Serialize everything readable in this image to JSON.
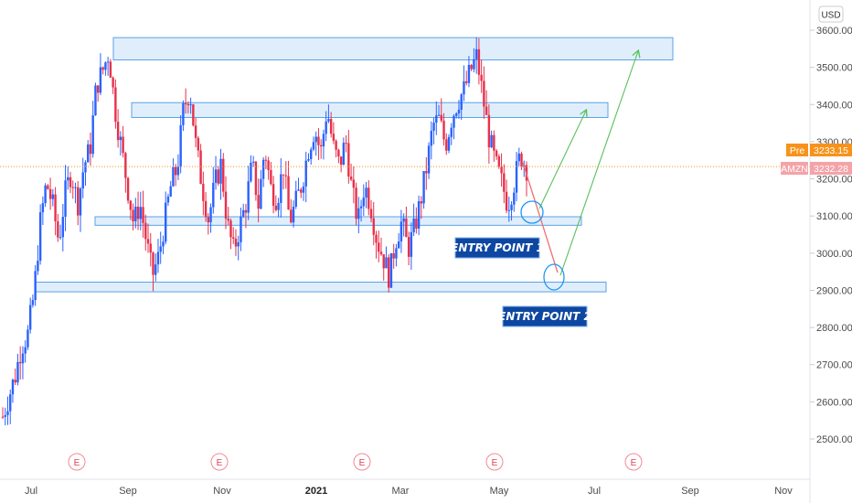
{
  "chart_data": {
    "type": "candlestick",
    "currency": "USD",
    "y_ticks": [
      "3600.00",
      "3500.00",
      "3400.00",
      "3300.00",
      "3200.00",
      "3100.00",
      "3000.00",
      "2900.00",
      "2800.00",
      "2700.00",
      "2600.00",
      "2500.00"
    ],
    "x_labels": [
      {
        "label": "Jul",
        "year": false
      },
      {
        "label": "Sep",
        "year": false
      },
      {
        "label": "Nov",
        "year": false
      },
      {
        "label": "2021",
        "year": true
      },
      {
        "label": "Mar",
        "year": false
      },
      {
        "label": "May",
        "year": false
      },
      {
        "label": "Jul",
        "year": false
      },
      {
        "label": "Sep",
        "year": false
      },
      {
        "label": "Nov",
        "year": false
      }
    ],
    "ylim": [
      2410,
      3640
    ],
    "colors": {
      "up": "#2962ff",
      "down": "#e8304a",
      "zone_fill": "#d6e8fb",
      "zone_stroke": "#5aa3e6",
      "arrow_up": "#59c05a",
      "arrow_down": "#f07070",
      "entry_bg": "#0d47a1",
      "pre_tag": "#f7931a",
      "amzn_tag": "#f4a3a8",
      "price_line": "#f7931a"
    },
    "zones": [
      {
        "top": 3580,
        "bottom": 3520
      },
      {
        "top": 3405,
        "bottom": 3365
      },
      {
        "top": 3098,
        "bottom": 3075
      },
      {
        "top": 2922,
        "bottom": 2896
      }
    ],
    "earnings_marker": "E",
    "entry_points": [
      "ENTRY POINT 1",
      "ENTRY POINT 2"
    ],
    "price_tags": [
      {
        "label": "Pre",
        "value": "3233.15"
      },
      {
        "label": "AMZN",
        "value": "3232.28"
      }
    ],
    "current_price": 3233.15,
    "candle_seed_points": [
      [
        2600,
        2520
      ],
      [
        2620,
        2610
      ],
      [
        2700,
        2640
      ],
      [
        2780,
        2720
      ],
      [
        2800,
        2760
      ],
      [
        2900,
        2880
      ],
      [
        3100,
        3060
      ],
      [
        3200,
        3180
      ],
      [
        3150,
        3110
      ],
      [
        3050,
        3010
      ],
      [
        3180,
        3140
      ],
      [
        3240,
        3200
      ],
      [
        3150,
        3110
      ],
      [
        3250,
        3220
      ],
      [
        3300,
        3260
      ],
      [
        3460,
        3440
      ],
      [
        3500,
        3480
      ],
      [
        3550,
        3530
      ],
      [
        3400,
        3380
      ],
      [
        3300,
        3270
      ],
      [
        3200,
        3160
      ],
      [
        3100,
        3060
      ],
      [
        3150,
        3120
      ],
      [
        3050,
        3020
      ],
      [
        2950,
        2930
      ],
      [
        3000,
        2980
      ],
      [
        3100,
        3080
      ],
      [
        3200,
        3170
      ],
      [
        3250,
        3210
      ],
      [
        3400,
        3380
      ],
      [
        3450,
        3430
      ],
      [
        3300,
        3270
      ],
      [
        3200,
        3160
      ],
      [
        3100,
        3080
      ],
      [
        3200,
        3170
      ],
      [
        3250,
        3230
      ],
      [
        3100,
        3060
      ],
      [
        3010,
        3000
      ],
      [
        3080,
        3060
      ],
      [
        3150,
        3120
      ],
      [
        3250,
        3230
      ],
      [
        3150,
        3110
      ],
      [
        3300,
        3270
      ],
      [
        3200,
        3150
      ],
      [
        3160,
        3130
      ],
      [
        3250,
        3220
      ],
      [
        3100,
        3070
      ],
      [
        3150,
        3120
      ],
      [
        3200,
        3180
      ],
      [
        3300,
        3260
      ],
      [
        3350,
        3320
      ],
      [
        3280,
        3260
      ],
      [
        3400,
        3380
      ],
      [
        3300,
        3270
      ],
      [
        3250,
        3220
      ],
      [
        3320,
        3290
      ],
      [
        3180,
        3150
      ],
      [
        3100,
        3070
      ],
      [
        3200,
        3170
      ],
      [
        3150,
        3110
      ],
      [
        3050,
        3020
      ],
      [
        3000,
        2980
      ],
      [
        2940,
        2930
      ],
      [
        3050,
        3020
      ],
      [
        3100,
        3070
      ],
      [
        3020,
        3000
      ],
      [
        3080,
        3050
      ],
      [
        3150,
        3130
      ],
      [
        3250,
        3220
      ],
      [
        3360,
        3330
      ],
      [
        3380,
        3340
      ],
      [
        3300,
        3280
      ],
      [
        3380,
        3350
      ],
      [
        3420,
        3400
      ],
      [
        3450,
        3430
      ],
      [
        3500,
        3480
      ],
      [
        3540,
        3520
      ],
      [
        3430,
        3410
      ],
      [
        3320,
        3300
      ],
      [
        3250,
        3230
      ],
      [
        3200,
        3180
      ],
      [
        3140,
        3120
      ],
      [
        3200,
        3180
      ],
      [
        3280,
        3250
      ],
      [
        3240,
        3220
      ]
    ]
  }
}
